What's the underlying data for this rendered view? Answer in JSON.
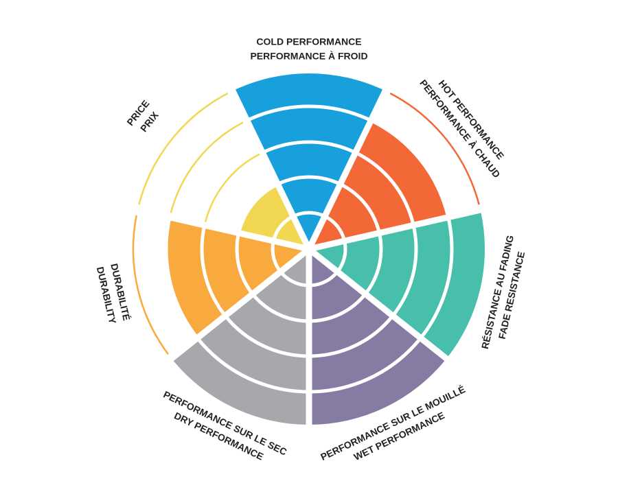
{
  "chart_data": {
    "type": "polar-area",
    "max_level": 5,
    "grid": true,
    "categories": [
      {
        "lines": [
          "COLD PERFORMANCE",
          "PERFORMANCE À FROID"
        ],
        "value": 5,
        "color": "#17a0db"
      },
      {
        "lines": [
          "HOT PERFORMANCE",
          "PERFORMANCE À CHAUD"
        ],
        "value": 4,
        "color": "#f26836"
      },
      {
        "lines": [
          "RÉSISTANCE AU FADING",
          "FADE RESISTANCE"
        ],
        "value": 5,
        "color": "#47bfab"
      },
      {
        "lines": [
          "PERFORMANCE SUR LE MOUILLÉ",
          "WET PERFORMANCE"
        ],
        "value": 5,
        "color": "#857ba3"
      },
      {
        "lines": [
          "PERFORMANCE SUR LE SEC",
          "DRY PERFORMANCE"
        ],
        "value": 5,
        "color": "#a7a8ab"
      },
      {
        "lines": [
          "DURABILITÉ",
          "DURABILITY"
        ],
        "value": 4,
        "color": "#f9aa3e"
      },
      {
        "lines": [
          "PRICE",
          "PRIX"
        ],
        "value": 2,
        "color": "#f2d852"
      }
    ]
  }
}
